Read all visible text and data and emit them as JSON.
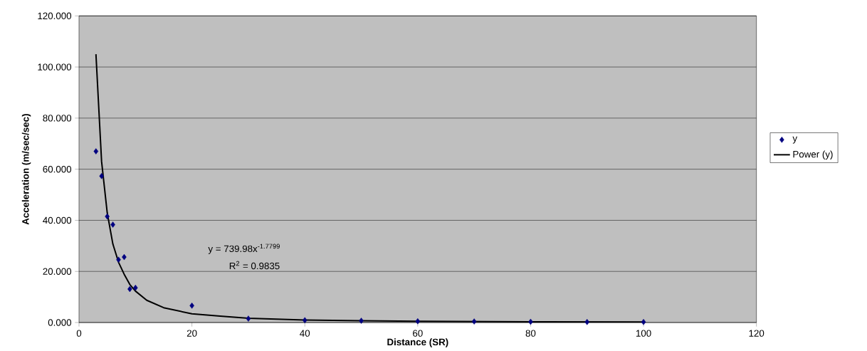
{
  "chart_data": {
    "type": "scatter",
    "xlabel": "Distance (SR)",
    "ylabel": "Acceleration (m/sec/sec)",
    "xlim": [
      0,
      120
    ],
    "xticks": [
      0,
      20,
      40,
      60,
      80,
      100,
      120
    ],
    "ylim": [
      0,
      120
    ],
    "yticks": [
      {
        "value": 0,
        "label": "0.000"
      },
      {
        "value": 20,
        "label": "20.000"
      },
      {
        "value": 40,
        "label": "40.000"
      },
      {
        "value": 60,
        "label": "60.000"
      },
      {
        "value": 80,
        "label": "80.000"
      },
      {
        "value": 100,
        "label": "100.000"
      },
      {
        "value": 120,
        "label": "120.000"
      }
    ],
    "grid": "y",
    "legend": "right",
    "marker": "diamond",
    "annotations": [
      "y = 739.98x$^{-1.7799}$",
      "R$^{2}$ = 0.9835"
    ],
    "series": [
      {
        "name": "y",
        "color": "#000080",
        "x": [
          3,
          4,
          5,
          6,
          7,
          8,
          9,
          10,
          20,
          30,
          40,
          50,
          60,
          70,
          80,
          90,
          100
        ],
        "values": [
          67.0,
          57.3,
          41.5,
          38.3,
          24.6,
          25.6,
          13.1,
          13.6,
          6.6,
          1.5,
          0.9,
          0.7,
          0.5,
          0.4,
          0.3,
          0.2,
          0.2
        ]
      },
      {
        "name": "Power (y)",
        "type": "line",
        "color": "#000000",
        "marker": "none",
        "line_style": "solid",
        "x": [
          3,
          4,
          5,
          6,
          7,
          8,
          9,
          10,
          12,
          15,
          20,
          25,
          30,
          40,
          50,
          60,
          80,
          100
        ],
        "values": [
          105,
          63,
          42.9,
          30.7,
          23.6,
          18.9,
          14.9,
          12.3,
          8.7,
          5.8,
          3.4,
          2.5,
          1.7,
          1.0,
          0.7,
          0.5,
          0.3,
          0.2
        ]
      }
    ]
  }
}
